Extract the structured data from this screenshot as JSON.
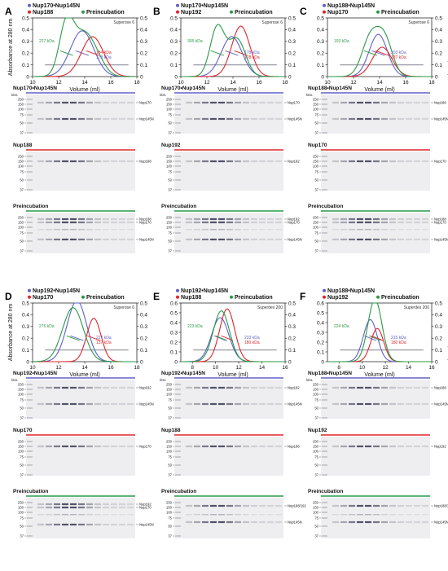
{
  "colors": {
    "blue": "#6060c8",
    "red": "#e0262a",
    "green": "#2a9a48",
    "gray": "#9a9aa8"
  },
  "y_label": "Absorbance at 280 nm",
  "y2_label": "Molecular Mass (MDa)",
  "x_label": "Volume (ml)",
  "kda": "kDa",
  "panels": [
    {
      "letter": "A",
      "legend": [
        "Nup170•Nup145N",
        "Nup188",
        "Preincubation"
      ],
      "column": "Superose 6",
      "xticks": [
        "10",
        "12",
        "14",
        "16",
        "18"
      ],
      "ann": [
        {
          "t": "227 kDa",
          "c": "green"
        },
        {
          "t": "184 kDa",
          "c": "red"
        },
        {
          "t": "178 kDa",
          "c": "blue"
        }
      ],
      "gels": [
        {
          "title": "Nup170•Nup145N",
          "color": "blue",
          "ladder": [
            "250",
            "150",
            "100",
            "75",
            "50",
            "37"
          ],
          "bands": [
            "Nup170",
            "Nup145N"
          ]
        },
        {
          "title": "Nup188",
          "color": "red",
          "ladder": [
            "250",
            "150",
            "100",
            "75",
            "50",
            "37"
          ],
          "bands": [
            "Nup188"
          ]
        },
        {
          "title": "Preincubation",
          "color": "green",
          "ladder": [
            "250",
            "150",
            "100",
            "75",
            "50",
            "37"
          ],
          "bands": [
            "Nup188",
            "Nup170",
            "Nup145N"
          ]
        }
      ]
    },
    {
      "letter": "B",
      "legend": [
        "Nup170•Nup145N",
        "Nup192",
        "Preincubation"
      ],
      "column": "Superose 6",
      "xticks": [
        "10",
        "12",
        "14",
        "16",
        "18"
      ],
      "ann": [
        {
          "t": "305 kDa",
          "c": "green"
        },
        {
          "t": "178 kDa",
          "c": "blue"
        },
        {
          "t": "178 kDa",
          "c": "red"
        }
      ],
      "gels": [
        {
          "title": "Nup170•Nup145N",
          "color": "blue",
          "ladder": [
            "250",
            "150",
            "100",
            "75",
            "50",
            "37"
          ],
          "bands": [
            "Nup170",
            "Nup145N"
          ]
        },
        {
          "title": "Nup192",
          "color": "red",
          "ladder": [
            "250",
            "150",
            "100",
            "75",
            "50",
            "37"
          ],
          "bands": [
            "Nup192"
          ]
        },
        {
          "title": "Preincubation",
          "color": "green",
          "ladder": [
            "250",
            "150",
            "100",
            "75",
            "50",
            "37"
          ],
          "bands": [
            "Nup192",
            "Nup170",
            "Nup145N"
          ]
        }
      ]
    },
    {
      "letter": "C",
      "legend": [
        "Nup188•Nup145N",
        "Nup170",
        "Preincubation"
      ],
      "column": "Superose 6",
      "xticks": [
        "10",
        "12",
        "14",
        "16",
        "18"
      ],
      "ann": [
        {
          "t": "193 kDa",
          "c": "green"
        },
        {
          "t": "203 kDa",
          "c": "blue"
        },
        {
          "t": "137 kDa",
          "c": "red"
        }
      ],
      "gels": [
        {
          "title": "Nup188•Nup145N",
          "color": "blue",
          "ladder": [
            "250",
            "150",
            "100",
            "75",
            "50",
            "37"
          ],
          "bands": [
            "Nup188",
            "Nup145N"
          ]
        },
        {
          "title": "Nup170",
          "color": "red",
          "ladder": [
            "250",
            "150",
            "100",
            "75",
            "50",
            "37"
          ],
          "bands": [
            "Nup170"
          ]
        },
        {
          "title": "Preincubation",
          "color": "green",
          "ladder": [
            "250",
            "150",
            "100",
            "75",
            "50",
            "37"
          ],
          "bands": [
            "Nup188",
            "Nup170",
            "Nup145N"
          ]
        }
      ]
    },
    {
      "letter": "D",
      "legend": [
        "Nup192•Nup145N",
        "Nup170",
        "Preincubation"
      ],
      "column": "Superose 6",
      "xticks": [
        "10",
        "12",
        "14",
        "16",
        "18"
      ],
      "ann": [
        {
          "t": "276 kDa",
          "c": "green"
        },
        {
          "t": "227 kDa",
          "c": "blue"
        },
        {
          "t": "137 kDa",
          "c": "red"
        }
      ],
      "gels": [
        {
          "title": "Nup192•Nup145N",
          "color": "blue",
          "ladder": [
            "250",
            "150",
            "100",
            "75",
            "50",
            "37"
          ],
          "bands": [
            "Nup192",
            "Nup145N"
          ]
        },
        {
          "title": "Nup170",
          "color": "red",
          "ladder": [
            "250",
            "150",
            "100",
            "75",
            "50",
            "37"
          ],
          "bands": [
            "Nup170"
          ]
        },
        {
          "title": "Preincubation",
          "color": "green",
          "ladder": [
            "250",
            "150",
            "100",
            "75",
            "50",
            "37"
          ],
          "bands": [
            "Nup192",
            "Nup170",
            "Nup145N"
          ]
        }
      ]
    },
    {
      "letter": "E",
      "legend": [
        "Nup192•Nup145N",
        "Nup188",
        "Preincubation"
      ],
      "column": "Superdex 200",
      "xticks": [
        "8",
        "10",
        "12",
        "14",
        "16"
      ],
      "ann": [
        {
          "t": "223 kDa",
          "c": "green"
        },
        {
          "t": "233 kDa",
          "c": "blue"
        },
        {
          "t": "180 kDa",
          "c": "red"
        }
      ],
      "gels": [
        {
          "title": "Nup192•Nup145N",
          "color": "blue",
          "ladder": [
            "250",
            "150",
            "100",
            "75",
            "50",
            "37"
          ],
          "bands": [
            "Nup192",
            "Nup145N"
          ]
        },
        {
          "title": "Nup188",
          "color": "red",
          "ladder": [
            "250",
            "150",
            "100",
            "75",
            "50",
            "37"
          ],
          "bands": [
            "Nup188"
          ]
        },
        {
          "title": "Preincubation",
          "color": "green",
          "ladder": [
            "250",
            "150",
            "100",
            "75",
            "50",
            "37"
          ],
          "bands": [
            "Nup188/192",
            "Nup145N"
          ]
        }
      ]
    },
    {
      "letter": "F",
      "legend": [
        "Nup188•Nup145N",
        "Nup192",
        "Preincubation"
      ],
      "column": "Superdex 200",
      "xticks": [
        "8",
        "10",
        "12",
        "14",
        "16"
      ],
      "ann": [
        {
          "t": "224 kDa",
          "c": "green"
        },
        {
          "t": "215 kDa",
          "c": "blue"
        },
        {
          "t": "180 kDa",
          "c": "red"
        }
      ],
      "gels": [
        {
          "title": "Nup188•Nup145N",
          "color": "blue",
          "ladder": [
            "250",
            "150",
            "100",
            "75",
            "50",
            "37"
          ],
          "bands": [
            "Nup188",
            "Nup145N"
          ]
        },
        {
          "title": "Nup192",
          "color": "red",
          "ladder": [
            "250",
            "150",
            "100",
            "75",
            "50",
            "37"
          ],
          "bands": [
            "Nup192"
          ]
        },
        {
          "title": "Preincubation",
          "color": "green",
          "ladder": [
            "250",
            "150",
            "100",
            "75",
            "50",
            "37"
          ],
          "bands": [
            "Nup188/192",
            "Nup145N"
          ]
        }
      ]
    }
  ],
  "chart_data": [
    {
      "type": "line",
      "panel": "A",
      "xlim": [
        10,
        18
      ],
      "ylim": [
        0,
        0.5
      ],
      "y2lim": [
        0,
        0.5
      ],
      "yticks": [
        0,
        0.1,
        0.2,
        0.3,
        0.4,
        0.5
      ],
      "y2ticks": [
        0,
        0.1,
        0.2,
        0.3,
        0.4,
        0.5
      ],
      "series": [
        {
          "name": "Nup170•Nup145N",
          "color": "blue",
          "peaks": [
            {
              "mu": 13.8,
              "s": 0.9,
              "h": 0.39
            }
          ]
        },
        {
          "name": "Nup188",
          "color": "red",
          "peaks": [
            {
              "mu": 14.6,
              "s": 0.85,
              "h": 0.34
            }
          ]
        },
        {
          "name": "Preincubation",
          "color": "green",
          "peaks": [
            {
              "mu": 12.6,
              "s": 0.55,
              "h": 0.45
            },
            {
              "mu": 13.8,
              "s": 0.7,
              "h": 0.3
            },
            {
              "mu": 14.8,
              "s": 0.7,
              "h": 0.16
            }
          ]
        }
      ]
    },
    {
      "type": "line",
      "panel": "B",
      "xlim": [
        10,
        18
      ],
      "ylim": [
        0,
        0.5
      ],
      "y2lim": [
        0,
        0.5
      ],
      "yticks": [
        0,
        0.1,
        0.2,
        0.3,
        0.4,
        0.5
      ],
      "y2ticks": [
        0,
        0.1,
        0.2,
        0.3,
        0.4,
        0.5
      ],
      "series": [
        {
          "name": "Nup170•Nup145N",
          "color": "blue",
          "peaks": [
            {
              "mu": 13.9,
              "s": 0.8,
              "h": 0.34
            }
          ]
        },
        {
          "name": "Nup192",
          "color": "red",
          "peaks": [
            {
              "mu": 14.6,
              "s": 0.7,
              "h": 0.43
            }
          ]
        },
        {
          "name": "Preincubation",
          "color": "green",
          "peaks": [
            {
              "mu": 12.8,
              "s": 0.55,
              "h": 0.42
            },
            {
              "mu": 14.3,
              "s": 0.65,
              "h": 0.32
            }
          ]
        }
      ]
    },
    {
      "type": "line",
      "panel": "C",
      "xlim": [
        10,
        18
      ],
      "ylim": [
        0,
        0.5
      ],
      "y2lim": [
        0,
        0.5
      ],
      "yticks": [
        0,
        0.1,
        0.2,
        0.3,
        0.4,
        0.5
      ],
      "y2ticks": [
        0,
        0.1,
        0.2,
        0.3,
        0.4,
        0.5
      ],
      "series": [
        {
          "name": "Nup188•Nup145N",
          "color": "blue",
          "peaks": [
            {
              "mu": 13.9,
              "s": 0.7,
              "h": 0.36
            }
          ]
        },
        {
          "name": "Nup170",
          "color": "red",
          "peaks": [
            {
              "mu": 14.2,
              "s": 0.75,
              "h": 0.25
            }
          ]
        },
        {
          "name": "Preincubation",
          "color": "green",
          "peaks": [
            {
              "mu": 13.3,
              "s": 0.65,
              "h": 0.33
            },
            {
              "mu": 14.4,
              "s": 0.6,
              "h": 0.3
            }
          ]
        }
      ]
    },
    {
      "type": "line",
      "panel": "D",
      "xlim": [
        10,
        18
      ],
      "ylim": [
        0,
        0.5
      ],
      "y2lim": [
        0,
        0.5
      ],
      "yticks": [
        0,
        0.1,
        0.2,
        0.3,
        0.4,
        0.5
      ],
      "y2ticks": [
        0,
        0.1,
        0.2,
        0.3,
        0.4,
        0.5
      ],
      "series": [
        {
          "name": "Nup192•Nup145N",
          "color": "blue",
          "peaks": [
            {
              "mu": 13.4,
              "s": 0.75,
              "h": 0.52
            }
          ]
        },
        {
          "name": "Nup170",
          "color": "red",
          "peaks": [
            {
              "mu": 14.7,
              "s": 0.55,
              "h": 0.37
            }
          ]
        },
        {
          "name": "Preincubation",
          "color": "green",
          "peaks": [
            {
              "mu": 13.1,
              "s": 0.8,
              "h": 0.46
            }
          ]
        }
      ]
    },
    {
      "type": "line",
      "panel": "E",
      "xlim": [
        7,
        16
      ],
      "ylim": [
        0,
        0.6
      ],
      "y2lim": [
        0,
        0.5
      ],
      "yticks": [
        0,
        0.1,
        0.2,
        0.3,
        0.4,
        0.5,
        0.6
      ],
      "y2ticks": [
        0,
        0.1,
        0.2,
        0.3,
        0.4,
        0.5
      ],
      "series": [
        {
          "name": "Nup192•Nup145N",
          "color": "blue",
          "peaks": [
            {
              "mu": 10.4,
              "s": 0.75,
              "h": 0.45
            }
          ]
        },
        {
          "name": "Nup188",
          "color": "red",
          "peaks": [
            {
              "mu": 11.0,
              "s": 0.65,
              "h": 0.54
            }
          ]
        },
        {
          "name": "Preincubation",
          "color": "green",
          "peaks": [
            {
              "mu": 10.5,
              "s": 0.7,
              "h": 0.52
            }
          ]
        }
      ]
    },
    {
      "type": "line",
      "panel": "F",
      "xlim": [
        7,
        16
      ],
      "ylim": [
        0,
        0.6
      ],
      "y2lim": [
        0,
        0.5
      ],
      "yticks": [
        0,
        0.1,
        0.2,
        0.3,
        0.4,
        0.5,
        0.6
      ],
      "y2ticks": [
        0,
        0.1,
        0.2,
        0.3,
        0.4,
        0.5
      ],
      "series": [
        {
          "name": "Nup188•Nup145N",
          "color": "blue",
          "peaks": [
            {
              "mu": 10.7,
              "s": 0.6,
              "h": 0.43
            }
          ]
        },
        {
          "name": "Nup192",
          "color": "red",
          "peaks": [
            {
              "mu": 11.3,
              "s": 0.55,
              "h": 0.34
            }
          ]
        },
        {
          "name": "Preincubation",
          "color": "green",
          "peaks": [
            {
              "mu": 11.1,
              "s": 0.6,
              "h": 0.64
            }
          ]
        }
      ]
    }
  ]
}
